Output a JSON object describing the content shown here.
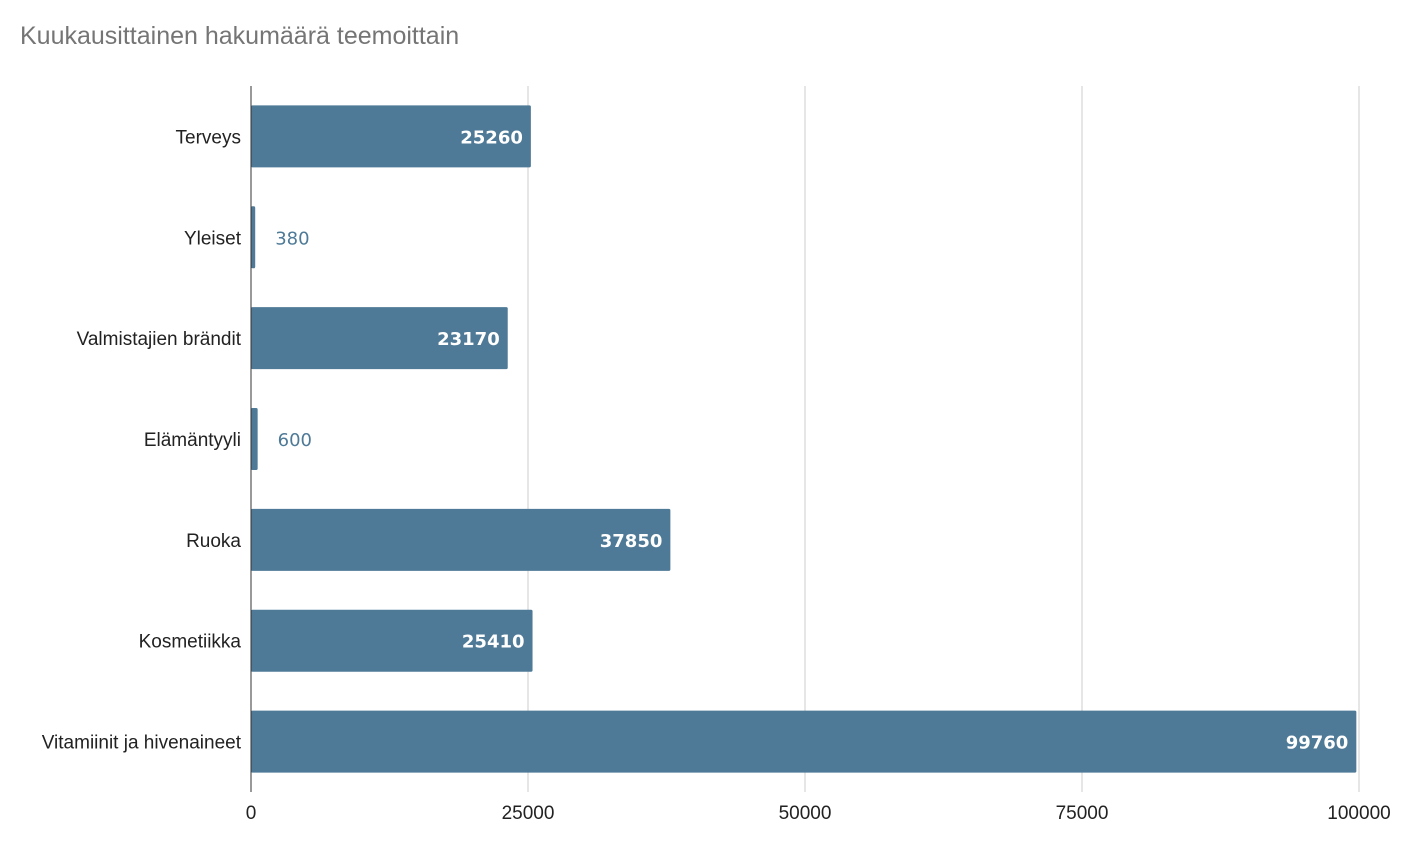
{
  "chart_data": {
    "type": "bar",
    "orientation": "horizontal",
    "title": "Kuukausittainen hakumäärä teemoittain",
    "categories": [
      "Terveys",
      "Yleiset",
      "Valmistajien brändit",
      "Elämäntyyli",
      "Ruoka",
      "Kosmetiikka",
      "Vitamiinit ja hivenaineet"
    ],
    "values": [
      25260,
      380,
      23170,
      600,
      37850,
      25410,
      99760
    ],
    "xlim": [
      0,
      100000
    ],
    "xticks": [
      "0",
      "25000",
      "50000",
      "75000",
      "100000"
    ],
    "grid": true,
    "bar_color": "#4e7a97",
    "grid_color": "#cccccc"
  }
}
